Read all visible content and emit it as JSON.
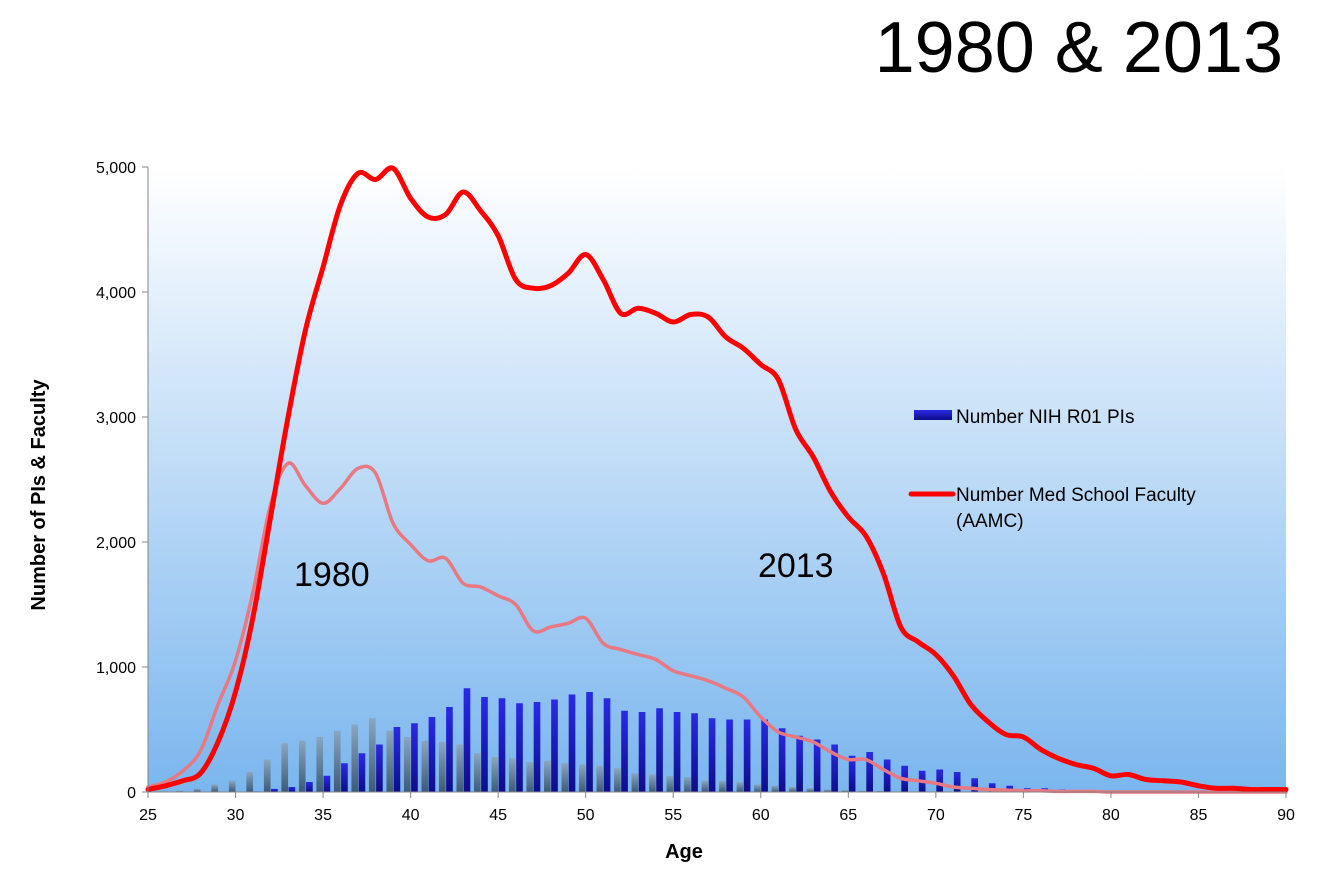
{
  "title": "1980 & 2013",
  "chart_data": {
    "type": "bar",
    "xlabel": "Age",
    "ylabel": "Number of PIs & Faculty",
    "xlim": [
      25,
      90
    ],
    "ylim": [
      0,
      5000
    ],
    "x_ticks": [
      "25",
      "30",
      "35",
      "40",
      "45",
      "50",
      "55",
      "60",
      "65",
      "70",
      "75",
      "80",
      "85",
      "90"
    ],
    "y_ticks": [
      "0",
      "1,000",
      "2,000",
      "3,000",
      "4,000",
      "5,000"
    ],
    "legend": {
      "placement": "right",
      "entries": [
        {
          "label": "Number NIH R01 PIs",
          "type": "bar",
          "color": "#1616d0"
        },
        {
          "label": "Number Med School Faculty",
          "label2": "(AAMC)",
          "type": "line",
          "color": "#ff0000"
        }
      ]
    },
    "annotations": [
      {
        "text": "1980",
        "x": 35.5,
        "y": 1650
      },
      {
        "text": "2013",
        "x": 62,
        "y": 1720
      }
    ],
    "series": [
      {
        "name": "Number Med School Faculty",
        "year": "2013",
        "type": "line",
        "color": "#ff0000",
        "x": [
          25,
          26,
          27,
          28,
          29,
          30,
          31,
          32,
          33,
          34,
          35,
          36,
          37,
          38,
          39,
          40,
          41,
          42,
          43,
          44,
          45,
          46,
          47,
          48,
          49,
          50,
          51,
          52,
          53,
          54,
          55,
          56,
          57,
          58,
          59,
          60,
          61,
          62,
          63,
          64,
          65,
          66,
          67,
          68,
          69,
          70,
          71,
          72,
          73,
          74,
          75,
          76,
          77,
          78,
          79,
          80,
          81,
          82,
          83,
          84,
          85,
          86,
          87,
          88,
          89,
          90
        ],
        "values": [
          20,
          50,
          90,
          150,
          400,
          800,
          1400,
          2200,
          3000,
          3700,
          4200,
          4700,
          4950,
          4900,
          4990,
          4750,
          4600,
          4620,
          4800,
          4650,
          4450,
          4100,
          4030,
          4050,
          4150,
          4300,
          4100,
          3830,
          3870,
          3830,
          3760,
          3820,
          3800,
          3640,
          3550,
          3420,
          3300,
          2900,
          2680,
          2400,
          2200,
          2050,
          1750,
          1320,
          1200,
          1100,
          930,
          700,
          560,
          460,
          440,
          340,
          270,
          220,
          190,
          130,
          140,
          100,
          90,
          80,
          50,
          30,
          30,
          20,
          20,
          20
        ]
      },
      {
        "name": "Number Med School Faculty",
        "year": "1980",
        "type": "line",
        "color": "#e87882",
        "x": [
          25,
          26,
          27,
          28,
          29,
          30,
          31,
          32,
          33,
          34,
          35,
          36,
          37,
          38,
          39,
          40,
          41,
          42,
          43,
          44,
          45,
          46,
          47,
          48,
          49,
          50,
          51,
          52,
          53,
          54,
          55,
          56,
          57,
          58,
          59,
          60,
          61,
          62,
          63,
          64,
          65,
          66,
          67,
          68,
          69,
          70,
          71,
          72,
          73,
          74,
          75,
          76,
          77,
          78,
          79,
          80,
          81,
          82,
          83,
          84,
          85,
          86,
          87,
          88,
          89,
          90
        ],
        "values": [
          40,
          80,
          170,
          330,
          700,
          1050,
          1600,
          2300,
          2630,
          2450,
          2310,
          2430,
          2590,
          2550,
          2150,
          1980,
          1850,
          1870,
          1670,
          1640,
          1570,
          1500,
          1290,
          1320,
          1350,
          1390,
          1190,
          1140,
          1100,
          1060,
          970,
          930,
          890,
          830,
          760,
          600,
          480,
          440,
          400,
          320,
          260,
          260,
          180,
          110,
          90,
          70,
          40,
          30,
          20,
          15,
          10,
          10,
          5,
          5,
          5,
          0,
          0,
          0,
          0,
          0,
          0,
          0,
          0,
          0,
          0,
          0
        ]
      },
      {
        "name": "Number NIH R01 PIs",
        "year": "2013",
        "type": "bar",
        "color": "#1616d0",
        "x": [
          25,
          26,
          27,
          28,
          29,
          30,
          31,
          32,
          33,
          34,
          35,
          36,
          37,
          38,
          39,
          40,
          41,
          42,
          43,
          44,
          45,
          46,
          47,
          48,
          49,
          50,
          51,
          52,
          53,
          54,
          55,
          56,
          57,
          58,
          59,
          60,
          61,
          62,
          63,
          64,
          65,
          66,
          67,
          68,
          69,
          70,
          71,
          72,
          73,
          74,
          75,
          76,
          77,
          78,
          79,
          80,
          81,
          82,
          83,
          84,
          85,
          86,
          87,
          88,
          89,
          90
        ],
        "values": [
          0,
          0,
          0,
          0,
          0,
          0,
          5,
          25,
          40,
          80,
          130,
          230,
          310,
          380,
          520,
          550,
          600,
          680,
          830,
          760,
          750,
          710,
          720,
          740,
          780,
          800,
          750,
          650,
          640,
          670,
          640,
          630,
          590,
          580,
          580,
          580,
          510,
          450,
          420,
          380,
          290,
          320,
          260,
          210,
          170,
          180,
          160,
          110,
          70,
          50,
          30,
          30,
          20,
          15,
          15,
          10,
          5,
          5,
          5,
          5,
          0,
          0,
          0,
          0,
          0,
          0
        ]
      },
      {
        "name": "Number NIH R01 PIs",
        "year": "1980",
        "type": "bar",
        "color": "#6f8fab",
        "x": [
          25,
          26,
          27,
          28,
          29,
          30,
          31,
          32,
          33,
          34,
          35,
          36,
          37,
          38,
          39,
          40,
          41,
          42,
          43,
          44,
          45,
          46,
          47,
          48,
          49,
          50,
          51,
          52,
          53,
          54,
          55,
          56,
          57,
          58,
          59,
          60,
          61,
          62,
          63,
          64,
          65,
          66,
          67,
          68,
          69,
          70,
          71,
          72,
          73,
          74,
          75,
          76,
          77,
          78,
          79,
          80,
          81,
          82,
          83,
          84,
          85,
          86,
          87,
          88,
          89,
          90
        ],
        "values": [
          0,
          5,
          10,
          25,
          60,
          90,
          160,
          260,
          390,
          410,
          440,
          490,
          540,
          590,
          490,
          440,
          410,
          400,
          380,
          310,
          280,
          270,
          240,
          250,
          230,
          220,
          210,
          190,
          150,
          140,
          130,
          120,
          90,
          90,
          80,
          60,
          50,
          40,
          30,
          20,
          15,
          10,
          10,
          5,
          5,
          0,
          0,
          0,
          0,
          0,
          0,
          0,
          0,
          0,
          0,
          0,
          0,
          0,
          0,
          0,
          0,
          0,
          0,
          0,
          0,
          0
        ]
      }
    ]
  }
}
